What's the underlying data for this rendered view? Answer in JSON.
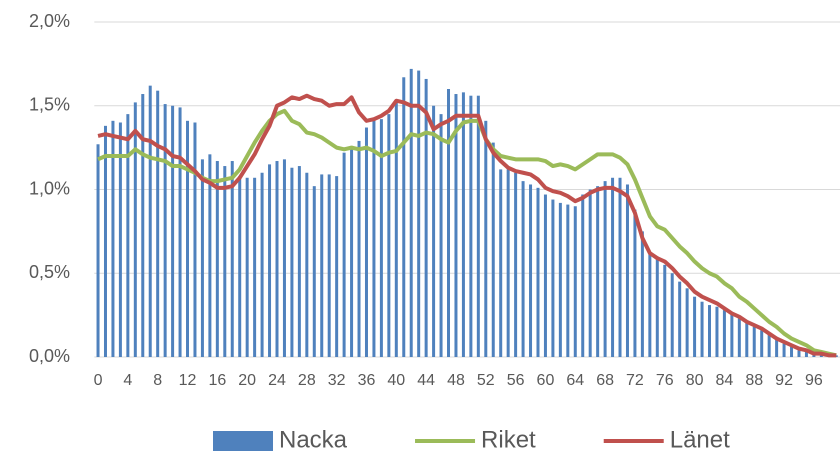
{
  "chart_data": {
    "type": "bar-line",
    "categories": [
      "0",
      null,
      null,
      null,
      "4",
      null,
      null,
      null,
      "8",
      null,
      null,
      null,
      "12",
      null,
      null,
      null,
      "16",
      null,
      null,
      null,
      "20",
      null,
      null,
      null,
      "24",
      null,
      null,
      null,
      "28",
      null,
      null,
      null,
      "32",
      null,
      null,
      null,
      "36",
      null,
      null,
      null,
      "40",
      null,
      null,
      null,
      "44",
      null,
      null,
      null,
      "48",
      null,
      null,
      null,
      "52",
      null,
      null,
      null,
      "56",
      null,
      null,
      null,
      "60",
      null,
      null,
      null,
      "64",
      null,
      null,
      null,
      "68",
      null,
      null,
      null,
      "72",
      null,
      null,
      null,
      "76",
      null,
      null,
      null,
      "80",
      null,
      null,
      null,
      "84",
      null,
      null,
      null,
      "88",
      null,
      null,
      null,
      "92",
      null,
      null,
      null,
      "96",
      null,
      null,
      null
    ],
    "series": [
      {
        "name": "Nacka",
        "kind": "bar",
        "color": "#4f81bd",
        "values": [
          1.27,
          1.38,
          1.41,
          1.4,
          1.45,
          1.52,
          1.57,
          1.62,
          1.59,
          1.51,
          1.5,
          1.49,
          1.41,
          1.4,
          1.18,
          1.21,
          1.17,
          1.14,
          1.17,
          1.08,
          1.07,
          1.07,
          1.1,
          1.15,
          1.17,
          1.18,
          1.13,
          1.14,
          1.1,
          1.02,
          1.09,
          1.09,
          1.08,
          1.22,
          1.26,
          1.29,
          1.37,
          1.43,
          1.42,
          1.45,
          1.53,
          1.67,
          1.72,
          1.71,
          1.66,
          1.5,
          1.45,
          1.6,
          1.57,
          1.58,
          1.56,
          1.56,
          1.41,
          1.28,
          1.12,
          1.12,
          1.1,
          1.05,
          1.03,
          1.01,
          0.97,
          0.94,
          0.92,
          0.91,
          0.9,
          0.97,
          1.0,
          1.02,
          1.05,
          1.07,
          1.07,
          1.03,
          0.88,
          0.75,
          0.62,
          0.6,
          0.55,
          0.5,
          0.45,
          0.41,
          0.36,
          0.33,
          0.31,
          0.3,
          0.28,
          0.26,
          0.23,
          0.21,
          0.18,
          0.16,
          0.14,
          0.12,
          0.08,
          0.06,
          0.04,
          0.03,
          0.02,
          0.01,
          0.01,
          0.01
        ]
      },
      {
        "name": "Riket",
        "kind": "line",
        "color": "#9bbb59",
        "values": [
          1.18,
          1.2,
          1.2,
          1.2,
          1.2,
          1.24,
          1.21,
          1.19,
          1.18,
          1.17,
          1.14,
          1.14,
          1.12,
          1.1,
          1.07,
          1.05,
          1.05,
          1.06,
          1.07,
          1.12,
          1.2,
          1.28,
          1.35,
          1.41,
          1.45,
          1.47,
          1.41,
          1.39,
          1.34,
          1.33,
          1.31,
          1.28,
          1.25,
          1.24,
          1.25,
          1.24,
          1.25,
          1.23,
          1.2,
          1.22,
          1.23,
          1.28,
          1.33,
          1.32,
          1.34,
          1.33,
          1.3,
          1.28,
          1.35,
          1.4,
          1.41,
          1.41,
          1.3,
          1.24,
          1.2,
          1.19,
          1.18,
          1.18,
          1.18,
          1.18,
          1.17,
          1.14,
          1.15,
          1.14,
          1.12,
          1.15,
          1.18,
          1.21,
          1.21,
          1.21,
          1.19,
          1.15,
          1.06,
          0.95,
          0.84,
          0.78,
          0.76,
          0.71,
          0.66,
          0.62,
          0.57,
          0.53,
          0.5,
          0.48,
          0.44,
          0.41,
          0.36,
          0.33,
          0.29,
          0.25,
          0.21,
          0.18,
          0.14,
          0.11,
          0.09,
          0.07,
          0.04,
          0.03,
          0.02,
          0.01
        ]
      },
      {
        "name": "Länet",
        "kind": "line",
        "color": "#c0504d",
        "values": [
          1.32,
          1.33,
          1.32,
          1.31,
          1.3,
          1.35,
          1.3,
          1.29,
          1.26,
          1.24,
          1.2,
          1.19,
          1.15,
          1.11,
          1.06,
          1.04,
          1.01,
          1.01,
          1.02,
          1.07,
          1.14,
          1.21,
          1.3,
          1.38,
          1.5,
          1.52,
          1.55,
          1.54,
          1.56,
          1.54,
          1.53,
          1.5,
          1.51,
          1.51,
          1.55,
          1.46,
          1.41,
          1.42,
          1.44,
          1.47,
          1.53,
          1.52,
          1.5,
          1.5,
          1.46,
          1.36,
          1.39,
          1.41,
          1.44,
          1.44,
          1.44,
          1.44,
          1.3,
          1.22,
          1.17,
          1.13,
          1.11,
          1.1,
          1.09,
          1.06,
          1.01,
          0.99,
          0.98,
          0.96,
          0.93,
          0.95,
          0.98,
          1.0,
          1.01,
          1.01,
          0.99,
          0.96,
          0.86,
          0.71,
          0.62,
          0.59,
          0.57,
          0.53,
          0.48,
          0.44,
          0.39,
          0.36,
          0.34,
          0.32,
          0.29,
          0.26,
          0.24,
          0.21,
          0.19,
          0.17,
          0.14,
          0.11,
          0.09,
          0.07,
          0.05,
          0.04,
          0.02,
          0.02,
          0.01,
          0.01
        ]
      }
    ],
    "ylim": [
      0,
      2
    ],
    "yticks": [
      {
        "value": 0,
        "label": "0,0%"
      },
      {
        "value": 0.5,
        "label": "0,5%"
      },
      {
        "value": 1,
        "label": "1,0%"
      },
      {
        "value": 1.5,
        "label": "1,5%"
      },
      {
        "value": 2,
        "label": "2,0%"
      }
    ],
    "grid": true,
    "legend": "bottom"
  }
}
